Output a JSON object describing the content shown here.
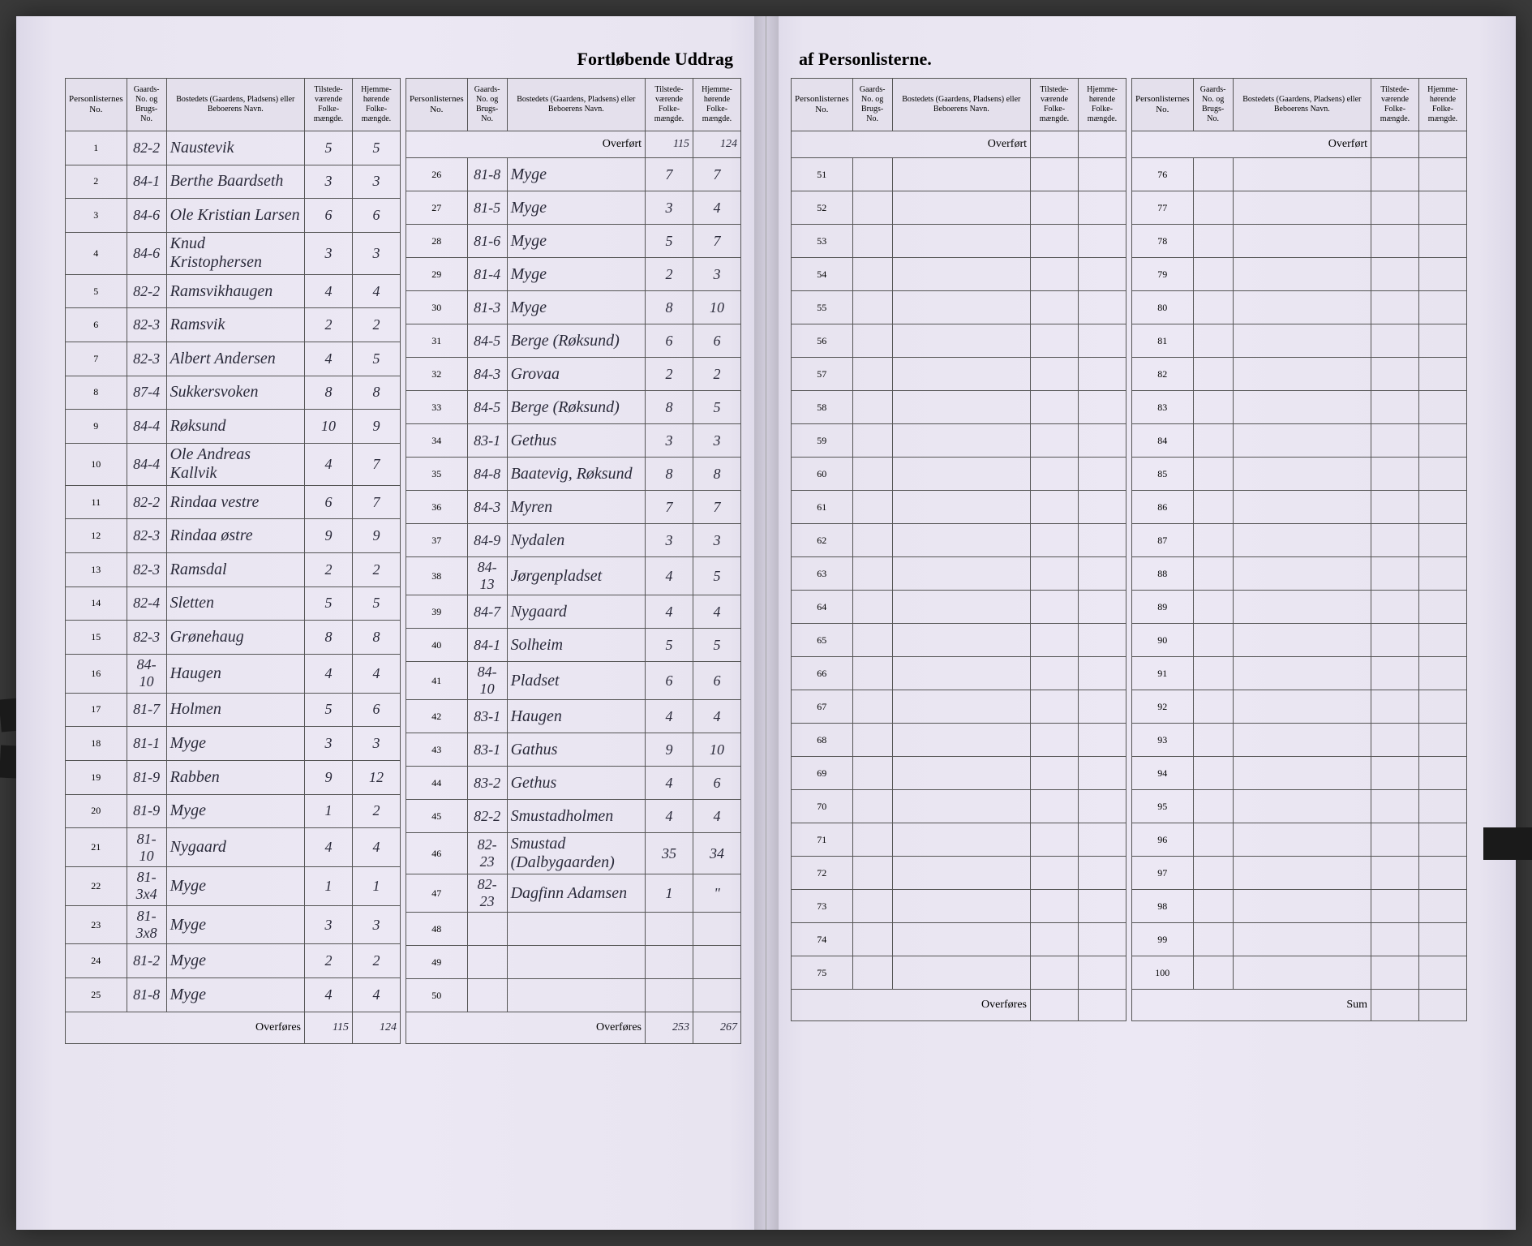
{
  "title_left": "Fortløbende Uddrag",
  "title_right": "af Personlisterne.",
  "headers": {
    "personlist": "Personlisternes No.",
    "gaards": "Gaards-No. og Brugs-No.",
    "bosted": "Bostedets (Gaardens, Pladsens) eller Beboerens Navn.",
    "tilstede": "Tilstede-værende Folke-mængde.",
    "hjemme": "Hjemme-hørende Folke-mængde."
  },
  "overfort": "Overført",
  "overfores": "Overføres",
  "sum": "Sum",
  "overfort_vals": {
    "t": "115",
    "h": "124"
  },
  "overfores_left": {
    "t": "115",
    "h": "124"
  },
  "overfores_right": {
    "t": "253",
    "h": "267"
  },
  "left1": [
    {
      "n": "1",
      "g": "82-2",
      "name": "Naustevik",
      "t": "5",
      "h": "5"
    },
    {
      "n": "2",
      "g": "84-1",
      "name": "Berthe Baardseth",
      "t": "3",
      "h": "3"
    },
    {
      "n": "3",
      "g": "84-6",
      "name": "Ole Kristian Larsen",
      "t": "6",
      "h": "6"
    },
    {
      "n": "4",
      "g": "84-6",
      "name": "Knud Kristophersen",
      "t": "3",
      "h": "3"
    },
    {
      "n": "5",
      "g": "82-2",
      "name": "Ramsvikhaugen",
      "t": "4",
      "h": "4"
    },
    {
      "n": "6",
      "g": "82-3",
      "name": "Ramsvik",
      "t": "2",
      "h": "2"
    },
    {
      "n": "7",
      "g": "82-3",
      "name": "Albert Andersen",
      "t": "4",
      "h": "5"
    },
    {
      "n": "8",
      "g": "87-4",
      "name": "Sukkersvoken",
      "t": "8",
      "h": "8"
    },
    {
      "n": "9",
      "g": "84-4",
      "name": "Røksund",
      "t": "10",
      "h": "9"
    },
    {
      "n": "10",
      "g": "84-4",
      "name": "Ole Andreas Kallvik",
      "t": "4",
      "h": "7"
    },
    {
      "n": "11",
      "g": "82-2",
      "name": "Rindaa vestre",
      "t": "6",
      "h": "7"
    },
    {
      "n": "12",
      "g": "82-3",
      "name": "Rindaa østre",
      "t": "9",
      "h": "9"
    },
    {
      "n": "13",
      "g": "82-3",
      "name": "Ramsdal",
      "t": "2",
      "h": "2"
    },
    {
      "n": "14",
      "g": "82-4",
      "name": "Sletten",
      "t": "5",
      "h": "5"
    },
    {
      "n": "15",
      "g": "82-3",
      "name": "Grønehaug",
      "t": "8",
      "h": "8"
    },
    {
      "n": "16",
      "g": "84-10",
      "name": "Haugen",
      "t": "4",
      "h": "4"
    },
    {
      "n": "17",
      "g": "81-7",
      "name": "Holmen",
      "t": "5",
      "h": "6"
    },
    {
      "n": "18",
      "g": "81-1",
      "name": "Myge",
      "t": "3",
      "h": "3"
    },
    {
      "n": "19",
      "g": "81-9",
      "name": "Rabben",
      "t": "9",
      "h": "12"
    },
    {
      "n": "20",
      "g": "81-9",
      "name": "Myge",
      "t": "1",
      "h": "2"
    },
    {
      "n": "21",
      "g": "81-10",
      "name": "Nygaard",
      "t": "4",
      "h": "4"
    },
    {
      "n": "22",
      "g": "81-3x4",
      "name": "Myge",
      "t": "1",
      "h": "1"
    },
    {
      "n": "23",
      "g": "81-3x8",
      "name": "Myge",
      "t": "3",
      "h": "3"
    },
    {
      "n": "24",
      "g": "81-2",
      "name": "Myge",
      "t": "2",
      "h": "2"
    },
    {
      "n": "25",
      "g": "81-8",
      "name": "Myge",
      "t": "4",
      "h": "4"
    }
  ],
  "left2": [
    {
      "n": "26",
      "g": "81-8",
      "name": "Myge",
      "t": "7",
      "h": "7"
    },
    {
      "n": "27",
      "g": "81-5",
      "name": "Myge",
      "t": "3",
      "h": "4"
    },
    {
      "n": "28",
      "g": "81-6",
      "name": "Myge",
      "t": "5",
      "h": "7"
    },
    {
      "n": "29",
      "g": "81-4",
      "name": "Myge",
      "t": "2",
      "h": "3"
    },
    {
      "n": "30",
      "g": "81-3",
      "name": "Myge",
      "t": "8",
      "h": "10"
    },
    {
      "n": "31",
      "g": "84-5",
      "name": "Berge (Røksund)",
      "t": "6",
      "h": "6"
    },
    {
      "n": "32",
      "g": "84-3",
      "name": "Grovaa",
      "t": "2",
      "h": "2"
    },
    {
      "n": "33",
      "g": "84-5",
      "name": "Berge (Røksund)",
      "t": "8",
      "h": "5"
    },
    {
      "n": "34",
      "g": "83-1",
      "name": "Gethus",
      "t": "3",
      "h": "3"
    },
    {
      "n": "35",
      "g": "84-8",
      "name": "Baatevig, Røksund",
      "t": "8",
      "h": "8"
    },
    {
      "n": "36",
      "g": "84-3",
      "name": "Myren",
      "t": "7",
      "h": "7"
    },
    {
      "n": "37",
      "g": "84-9",
      "name": "Nydalen",
      "t": "3",
      "h": "3"
    },
    {
      "n": "38",
      "g": "84-13",
      "name": "Jørgenpladset",
      "t": "4",
      "h": "5"
    },
    {
      "n": "39",
      "g": "84-7",
      "name": "Nygaard",
      "t": "4",
      "h": "4"
    },
    {
      "n": "40",
      "g": "84-1",
      "name": "Solheim",
      "t": "5",
      "h": "5"
    },
    {
      "n": "41",
      "g": "84-10",
      "name": "Pladset",
      "t": "6",
      "h": "6"
    },
    {
      "n": "42",
      "g": "83-1",
      "name": "Haugen",
      "t": "4",
      "h": "4"
    },
    {
      "n": "43",
      "g": "83-1",
      "name": "Gathus",
      "t": "9",
      "h": "10"
    },
    {
      "n": "44",
      "g": "83-2",
      "name": "Gethus",
      "t": "4",
      "h": "6"
    },
    {
      "n": "45",
      "g": "82-2",
      "name": "Smustadholmen",
      "t": "4",
      "h": "4"
    },
    {
      "n": "46",
      "g": "82-23",
      "name": "Smustad (Dalbygaarden)",
      "t": "35",
      "h": "34"
    },
    {
      "n": "47",
      "g": "82-23",
      "name": "Dagfinn Adamsen",
      "t": "1",
      "h": "\""
    },
    {
      "n": "48",
      "g": "",
      "name": "",
      "t": "",
      "h": ""
    },
    {
      "n": "49",
      "g": "",
      "name": "",
      "t": "",
      "h": ""
    },
    {
      "n": "50",
      "g": "",
      "name": "",
      "t": "",
      "h": ""
    }
  ],
  "right1_nums": [
    "51",
    "52",
    "53",
    "54",
    "55",
    "56",
    "57",
    "58",
    "59",
    "60",
    "61",
    "62",
    "63",
    "64",
    "65",
    "66",
    "67",
    "68",
    "69",
    "70",
    "71",
    "72",
    "73",
    "74",
    "75"
  ],
  "right2_nums": [
    "76",
    "77",
    "78",
    "79",
    "80",
    "81",
    "82",
    "83",
    "84",
    "85",
    "86",
    "87",
    "88",
    "89",
    "90",
    "91",
    "92",
    "93",
    "94",
    "95",
    "96",
    "97",
    "98",
    "99",
    "100"
  ]
}
